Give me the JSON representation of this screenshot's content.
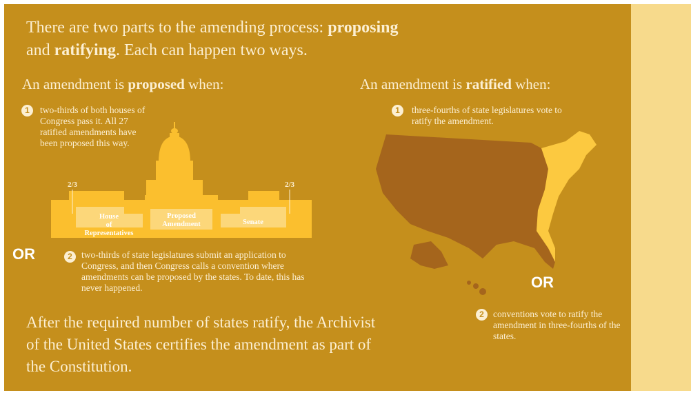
{
  "intro": {
    "text1": "There are two parts to the amending process: ",
    "bold1": "proposing",
    "text2": "and ",
    "bold2": "ratifying",
    "text3": ". Each can happen two ways."
  },
  "proposed": {
    "heading": {
      "lead": "An amendment is ",
      "bold": "proposed",
      "tail": " when:"
    },
    "steps": [
      {
        "number": "1",
        "text": "two-thirds of both houses of Congress pass it. All 27 ratified amendments have been proposed this way."
      },
      {
        "number": "2",
        "text": "two-thirds of state legislatures submit an application to Congress, and then Congress calls a convention where amendments can be proposed by the states. To date, this has never happened."
      }
    ],
    "or": "OR",
    "diagram": {
      "fraction_left": "2/3",
      "fraction_right": "2/3",
      "house": "House of Representatives",
      "center": "Proposed Amendment",
      "senate": "Senate"
    }
  },
  "ratified": {
    "heading": {
      "lead": "An amendment is ",
      "bold": "ratified",
      "tail": " when:"
    },
    "steps": [
      {
        "number": "1",
        "text": "three-fourths of state legislatures vote to ratify the amendment."
      },
      {
        "number": "2",
        "text": "conventions vote to ratify the amendment in three-fourths of the states."
      }
    ],
    "or": "OR"
  },
  "conclusion": "After the required number of states ratify, the Archivist of the United States certifies the amendment as part of the Constitution."
}
